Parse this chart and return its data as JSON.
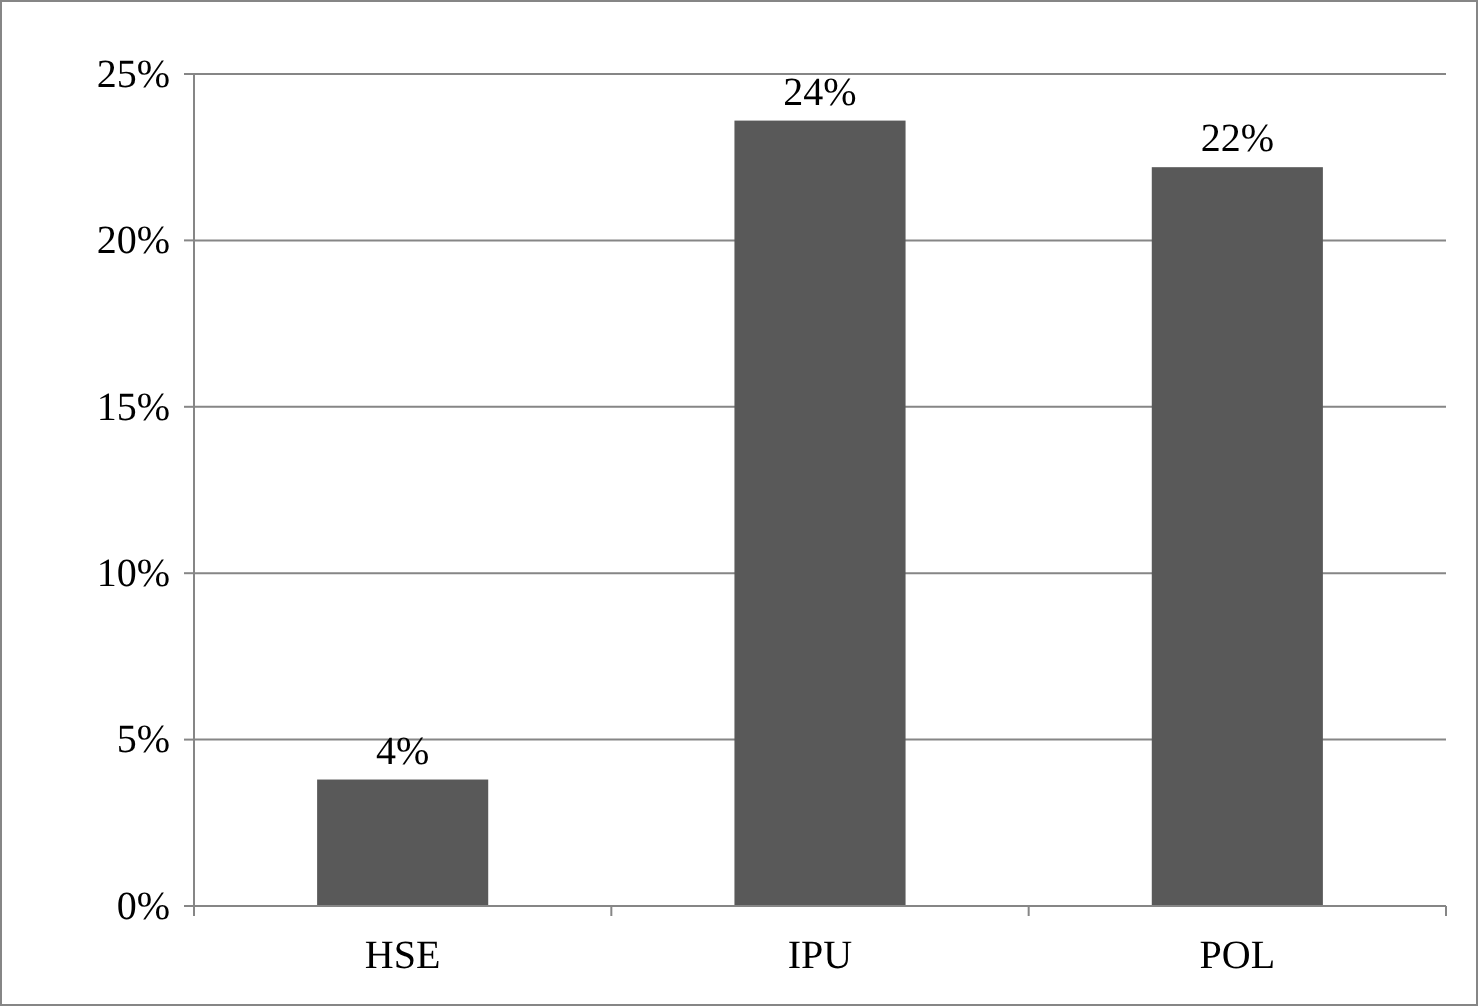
{
  "chart_data": {
    "type": "bar",
    "categories": [
      "HSE",
      "IPU",
      "POL"
    ],
    "values": [
      3.8,
      23.6,
      22.2
    ],
    "value_labels": [
      "4%",
      "24%",
      "22%"
    ],
    "color": "#595959",
    "ylim": [
      0,
      25
    ],
    "yticks": [
      {
        "value": 0,
        "label": "0%"
      },
      {
        "value": 5,
        "label": "5%"
      },
      {
        "value": 10,
        "label": "10%"
      },
      {
        "value": 15,
        "label": "15%"
      },
      {
        "value": 20,
        "label": "20%"
      },
      {
        "value": 25,
        "label": "25%"
      }
    ],
    "grid": "y"
  }
}
